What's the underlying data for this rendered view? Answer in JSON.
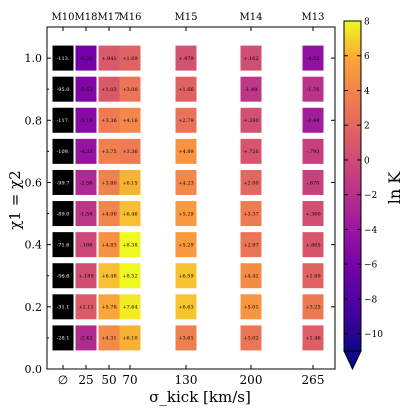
{
  "chart_data": {
    "type": "heatmap",
    "title": "",
    "xlabel": "σ_kick [km/s]",
    "ylabel": "χ1 = χ2",
    "x_tick_labels": [
      "∅",
      "25",
      "50",
      "70",
      "130",
      "200",
      "265"
    ],
    "x_tick_values": [
      0,
      25,
      50,
      70,
      130,
      200,
      265
    ],
    "top_labels": [
      "M10",
      "M18",
      "M17",
      "M16",
      "M15",
      "M14",
      "M13"
    ],
    "y_tick_labels": [
      "0.0",
      "0.2",
      "0.4",
      "0.6",
      "0.8",
      "1.0"
    ],
    "y_tick_values": [
      0.0,
      0.2,
      0.4,
      0.6,
      0.8,
      1.0
    ],
    "ylim": [
      0.0,
      1.1
    ],
    "y_values": [
      1.0,
      0.9,
      0.8,
      0.7,
      0.6,
      0.5,
      0.4,
      0.3,
      0.2,
      0.1
    ],
    "colorbar": {
      "label": "ln K",
      "range": [
        -11,
        8
      ],
      "tick_labels": [
        "8",
        "6",
        "4",
        "2",
        "0",
        "−2",
        "−4",
        "−6",
        "−8",
        "−10"
      ],
      "tick_values": [
        8,
        6,
        4,
        2,
        0,
        -2,
        -4,
        -6,
        -8,
        -10
      ],
      "colormap": "plasma",
      "extend": "min"
    },
    "cells": [
      [
        "-113.",
        "-6.26",
        "+.941",
        "+1.69",
        "+.479",
        "+.162",
        "-4.52"
      ],
      [
        "-95.0",
        "-5.53",
        "+1.03",
        "+3.00",
        "+1.66",
        "-1.49",
        "-1.76"
      ],
      [
        "-117.",
        "-5.19",
        "+3.36",
        "+4.16",
        "+2.79",
        "+.330",
        "-3.44"
      ],
      [
        "-109.",
        "-4.33",
        "+3.75",
        "+3.36",
        "+4.89",
        "+.726",
        "-.793"
      ],
      [
        "-99.7",
        "-2.56",
        "+3.80",
        "+6.15",
        "+4.23",
        "+2.00",
        "-.670"
      ],
      [
        "-89.0",
        "-1.58",
        "+4.00",
        "+6.46",
        "+5.29",
        "+3.37",
        "+.300"
      ],
      [
        "-71.6",
        "-.186",
        "+4.83",
        "+8.38",
        "+5.29",
        "+2.97",
        "+.805"
      ],
      [
        "-56.6",
        "+.189",
        "+6.48",
        "+8.52",
        "+6.59",
        "+4.41",
        "+1.69"
      ],
      [
        "-31.1",
        "+1.11",
        "+5.78",
        "+7.64",
        "+6.63",
        "+5.01",
        "+3.25"
      ],
      [
        "-28.1",
        "-2.42",
        "+4.31",
        "+6.10",
        "+3.61",
        "+3.02",
        "+1.46"
      ]
    ]
  }
}
